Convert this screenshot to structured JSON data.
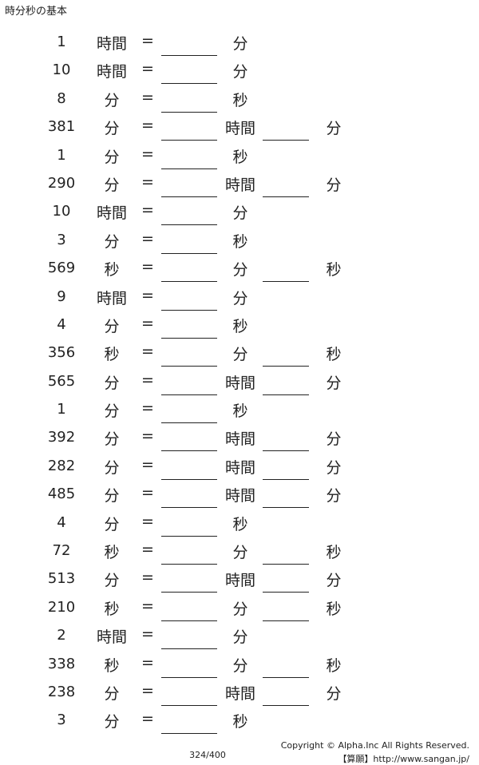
{
  "header": {
    "title": "時分秒の基本"
  },
  "problems": [
    {
      "num": "1",
      "unit1": "時間",
      "unit2": "分",
      "unit3": ""
    },
    {
      "num": "10",
      "unit1": "時間",
      "unit2": "分",
      "unit3": ""
    },
    {
      "num": "8",
      "unit1": "分",
      "unit2": "秒",
      "unit3": ""
    },
    {
      "num": "381",
      "unit1": "分",
      "unit2": "時間",
      "unit3": "分"
    },
    {
      "num": "1",
      "unit1": "分",
      "unit2": "秒",
      "unit3": ""
    },
    {
      "num": "290",
      "unit1": "分",
      "unit2": "時間",
      "unit3": "分"
    },
    {
      "num": "10",
      "unit1": "時間",
      "unit2": "分",
      "unit3": ""
    },
    {
      "num": "3",
      "unit1": "分",
      "unit2": "秒",
      "unit3": ""
    },
    {
      "num": "569",
      "unit1": "秒",
      "unit2": "分",
      "unit3": "秒"
    },
    {
      "num": "9",
      "unit1": "時間",
      "unit2": "分",
      "unit3": ""
    },
    {
      "num": "4",
      "unit1": "分",
      "unit2": "秒",
      "unit3": ""
    },
    {
      "num": "356",
      "unit1": "秒",
      "unit2": "分",
      "unit3": "秒"
    },
    {
      "num": "565",
      "unit1": "分",
      "unit2": "時間",
      "unit3": "分"
    },
    {
      "num": "1",
      "unit1": "分",
      "unit2": "秒",
      "unit3": ""
    },
    {
      "num": "392",
      "unit1": "分",
      "unit2": "時間",
      "unit3": "分"
    },
    {
      "num": "282",
      "unit1": "分",
      "unit2": "時間",
      "unit3": "分"
    },
    {
      "num": "485",
      "unit1": "分",
      "unit2": "時間",
      "unit3": "分"
    },
    {
      "num": "4",
      "unit1": "分",
      "unit2": "秒",
      "unit3": ""
    },
    {
      "num": "72",
      "unit1": "秒",
      "unit2": "分",
      "unit3": "秒"
    },
    {
      "num": "513",
      "unit1": "分",
      "unit2": "時間",
      "unit3": "分"
    },
    {
      "num": "210",
      "unit1": "秒",
      "unit2": "分",
      "unit3": "秒"
    },
    {
      "num": "2",
      "unit1": "時間",
      "unit2": "分",
      "unit3": ""
    },
    {
      "num": "338",
      "unit1": "秒",
      "unit2": "分",
      "unit3": "秒"
    },
    {
      "num": "238",
      "unit1": "分",
      "unit2": "時間",
      "unit3": "分"
    },
    {
      "num": "3",
      "unit1": "分",
      "unit2": "秒",
      "unit3": ""
    }
  ],
  "equals_sign": "=",
  "footer": {
    "page_number": "324/400",
    "copyright": "Copyright © Alpha.Inc All Rights Reserved.",
    "site": "【算願】http://www.sangan.jp/"
  }
}
